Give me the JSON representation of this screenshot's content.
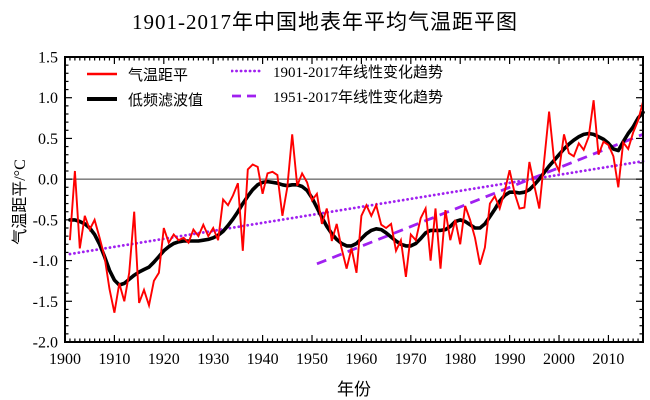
{
  "title": "1901-2017年中国地表年平均气温距平图",
  "colors": {
    "annual": "#ff0000",
    "filtered": "#000000",
    "trend": "#a020f0",
    "axis": "#000000",
    "zero_line": "#3a3a3a",
    "background": "#ffffff"
  },
  "axes": {
    "x": {
      "label": "年份",
      "min": 1900,
      "max": 2017,
      "major_step": 10,
      "minor_step": 1,
      "tick_labels": [
        "1900",
        "1910",
        "1920",
        "1930",
        "1940",
        "1950",
        "1960",
        "1970",
        "1980",
        "1990",
        "2000",
        "2010"
      ]
    },
    "y": {
      "label": "气温距平/°C",
      "min": -2.0,
      "max": 1.5,
      "major_step": 0.5,
      "minor_step": 0.1,
      "tick_labels": [
        "-2.0",
        "-1.5",
        "-1.0",
        "-0.5",
        "0.0",
        "0.5",
        "1.0",
        "1.5"
      ]
    }
  },
  "legend": {
    "items": [
      {
        "label": "气温距平",
        "line": "solid-red"
      },
      {
        "label": "低频滤波值",
        "line": "solid-black-thick"
      },
      {
        "label": "1901-2017年线性变化趋势",
        "line": "dotted-purple"
      },
      {
        "label": "1951-2017年线性变化趋势",
        "line": "dashed-purple"
      }
    ]
  },
  "chart_data": {
    "type": "line",
    "title": "1901-2017年中国地表年平均气温距平图",
    "xlabel": "年份",
    "ylabel": "气温距平/°C",
    "xlim": [
      1900,
      2017
    ],
    "ylim": [
      -2.0,
      1.5
    ],
    "grid": false,
    "zero_line": true,
    "legend_position": "top-left-inside",
    "series": [
      {
        "name": "气温距平",
        "role": "annual",
        "start_year": 1901,
        "values": [
          -0.75,
          0.1,
          -0.85,
          -0.45,
          -0.62,
          -0.5,
          -0.72,
          -0.95,
          -1.35,
          -1.64,
          -1.28,
          -1.5,
          -1.15,
          -0.4,
          -1.52,
          -1.36,
          -1.55,
          -1.25,
          -1.15,
          -0.6,
          -0.78,
          -0.68,
          -0.75,
          -0.72,
          -0.78,
          -0.62,
          -0.7,
          -0.56,
          -0.7,
          -0.6,
          -0.75,
          -0.25,
          -0.32,
          -0.2,
          -0.05,
          -0.88,
          0.12,
          0.18,
          0.15,
          -0.18,
          0.07,
          0.09,
          0.05,
          -0.45,
          -0.1,
          0.55,
          -0.08,
          0.07,
          -0.04,
          -0.26,
          -0.18,
          -0.55,
          -0.36,
          -0.76,
          -0.55,
          -0.85,
          -1.1,
          -0.85,
          -1.15,
          -0.45,
          -0.32,
          -0.45,
          -0.32,
          -0.56,
          -0.6,
          -0.55,
          -0.88,
          -0.75,
          -1.2,
          -0.68,
          -0.75,
          -0.48,
          -0.36,
          -1.0,
          -0.36,
          -1.1,
          -0.38,
          -0.75,
          -0.5,
          -0.8,
          -0.33,
          -0.5,
          -0.72,
          -1.05,
          -0.84,
          -0.3,
          -0.21,
          -0.36,
          -0.15,
          0.11,
          -0.17,
          -0.36,
          -0.35,
          0.21,
          -0.08,
          -0.36,
          0.23,
          0.83,
          0.23,
          0.1,
          0.55,
          0.32,
          0.28,
          0.44,
          0.36,
          0.52,
          0.97,
          0.3,
          0.46,
          0.42,
          0.28,
          -0.1,
          0.45,
          0.37,
          0.57,
          0.72,
          0.95
        ]
      },
      {
        "name": "低频滤波值",
        "role": "filtered",
        "start_year": 1901,
        "values": [
          -0.5,
          -0.5,
          -0.52,
          -0.55,
          -0.6,
          -0.68,
          -0.8,
          -0.95,
          -1.12,
          -1.24,
          -1.3,
          -1.28,
          -1.23,
          -1.18,
          -1.14,
          -1.11,
          -1.08,
          -1.02,
          -0.95,
          -0.88,
          -0.83,
          -0.79,
          -0.77,
          -0.76,
          -0.76,
          -0.76,
          -0.76,
          -0.75,
          -0.74,
          -0.72,
          -0.69,
          -0.64,
          -0.57,
          -0.49,
          -0.4,
          -0.3,
          -0.21,
          -0.13,
          -0.07,
          -0.04,
          -0.03,
          -0.04,
          -0.05,
          -0.07,
          -0.08,
          -0.07,
          -0.07,
          -0.09,
          -0.14,
          -0.23,
          -0.35,
          -0.47,
          -0.58,
          -0.67,
          -0.74,
          -0.79,
          -0.82,
          -0.82,
          -0.79,
          -0.73,
          -0.67,
          -0.63,
          -0.61,
          -0.62,
          -0.66,
          -0.71,
          -0.76,
          -0.8,
          -0.82,
          -0.82,
          -0.79,
          -0.73,
          -0.66,
          -0.63,
          -0.63,
          -0.63,
          -0.62,
          -0.58,
          -0.52,
          -0.5,
          -0.52,
          -0.56,
          -0.6,
          -0.6,
          -0.55,
          -0.46,
          -0.37,
          -0.27,
          -0.2,
          -0.16,
          -0.16,
          -0.17,
          -0.16,
          -0.13,
          -0.07,
          0.0,
          0.08,
          0.16,
          0.23,
          0.3,
          0.37,
          0.43,
          0.48,
          0.52,
          0.55,
          0.56,
          0.55,
          0.52,
          0.49,
          0.44,
          0.37,
          0.35,
          0.46,
          0.56,
          0.64,
          0.75,
          0.82
        ]
      },
      {
        "name": "1901-2017年线性变化趋势",
        "role": "trend_dotted",
        "x": [
          1901,
          2017
        ],
        "y": [
          -0.92,
          0.22
        ]
      },
      {
        "name": "1951-2017年线性变化趋势",
        "role": "trend_dashed",
        "x": [
          1951,
          2017
        ],
        "y": [
          -1.04,
          0.55
        ]
      }
    ]
  }
}
